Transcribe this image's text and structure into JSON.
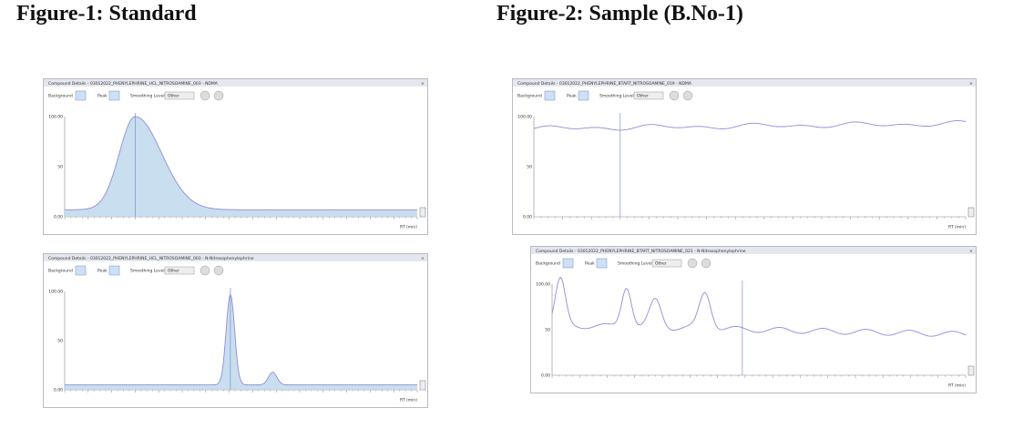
{
  "figures": [
    {
      "title": "Figure-1: Standard",
      "panels": [
        {
          "header": "Compound Details - 03012022_PHENYLEPHRINE_HCL_NITROSOAMINE_003 - NDMA",
          "controls": {
            "background": "Background",
            "peak": "Peak",
            "smoothing": "Smoothing Level",
            "option": "Other"
          },
          "yticks": [
            "100.00",
            "50",
            "0.00"
          ],
          "x_label": "RT (min)"
        },
        {
          "header": "Compound Details - 03012022_PHENYLEPHRINE_HCL_NITROSOAMINE_003 - N-Nitrosophenylephrine",
          "controls": {
            "background": "Background",
            "peak": "Peak",
            "smoothing": "Smoothing Level",
            "option": "Other"
          },
          "yticks": [
            "100.00",
            "50",
            "0.00"
          ],
          "x_label": "RT (min)"
        }
      ]
    },
    {
      "title": "Figure-2: Sample (B.No-1)",
      "panels": [
        {
          "header": "Compound Details - 03012022_PHENYLEPHRINE_BTART_NITROSOAMINE_019 - NDMA",
          "controls": {
            "background": "Background",
            "peak": "Peak",
            "smoothing": "Smoothing Level",
            "option": "Other"
          },
          "yticks": [
            "100.00",
            "50",
            "0.00"
          ],
          "x_label": "RT (min)"
        },
        {
          "header": "Compound Details - 03012022_PHENYLEPHRINE_BTART_NITROSOAMINE_021 - N-Nitrosophenylephrine",
          "controls": {
            "background": "Background",
            "peak": "Peak",
            "smoothing": "Smoothing Level",
            "option": "Other"
          },
          "yticks": [
            "100.00",
            "50",
            "0.00"
          ],
          "x_label": "RT (min)"
        }
      ]
    }
  ]
}
